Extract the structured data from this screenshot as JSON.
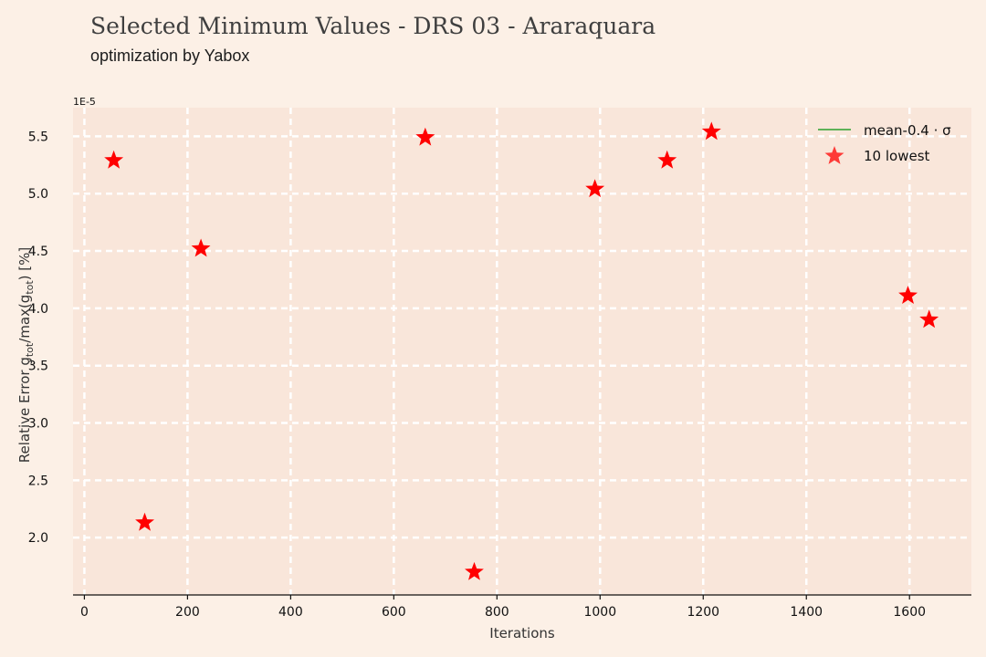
{
  "chart_data": {
    "type": "scatter",
    "title": "Selected Minimum Values - DRS 03 - Araraquara",
    "subtitle": "optimization by Yabox",
    "xlabel": "Iterations",
    "ylabel_main": "Relative Error g",
    "ylabel_sub1": "tot",
    "ylabel_mid": "/max(g",
    "ylabel_sub2": "tot",
    "ylabel_end": ") [%]",
    "y_multiplier": "1E-5",
    "xlim": [
      -22,
      1720
    ],
    "ylim": [
      1.5,
      5.75
    ],
    "x_ticks": [
      0,
      200,
      400,
      600,
      800,
      1000,
      1200,
      1400,
      1600
    ],
    "y_ticks": [
      2.0,
      2.5,
      3.0,
      3.5,
      4.0,
      4.5,
      5.0,
      5.5
    ],
    "y_tick_labels": [
      "2.0",
      "2.5",
      "3.0",
      "3.5",
      "4.0",
      "4.5",
      "5.0",
      "5.5"
    ],
    "grid": true,
    "legend_position": "top-right",
    "series": [
      {
        "name": "mean-0.4 · σ",
        "type": "line",
        "color": "#2ca02c",
        "x": [],
        "y": []
      },
      {
        "name": "10 lowest",
        "type": "scatter",
        "marker": "star",
        "color": "#ff0000",
        "x": [
          57,
          117,
          226,
          661,
          756,
          990,
          1130,
          1216,
          1597,
          1638
        ],
        "y": [
          5.29,
          2.13,
          4.52,
          5.49,
          1.7,
          5.04,
          5.29,
          5.54,
          4.11,
          3.9
        ]
      }
    ]
  },
  "colors": {
    "background": "#fcf0e6",
    "plot_area": "#f9e6da",
    "grid": "#ffffff",
    "marker": "#ff0000",
    "mean_line": "#2ca02c"
  }
}
